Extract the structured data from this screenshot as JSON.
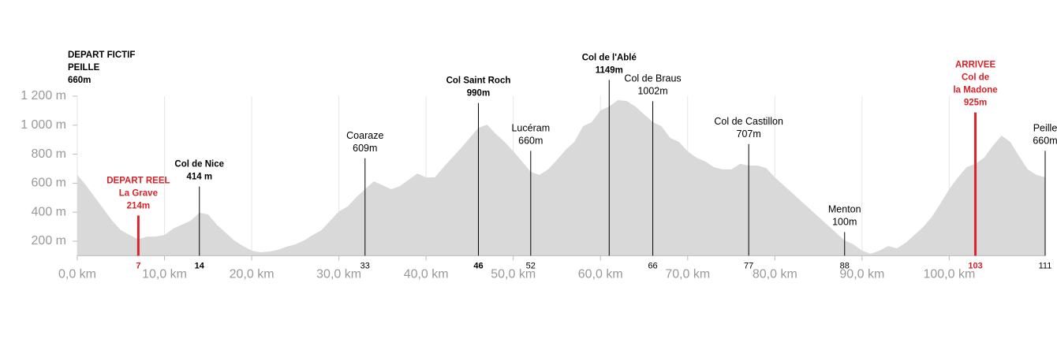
{
  "chart_data": {
    "type": "area",
    "color": "#d9d9d9",
    "grid": true,
    "x": [
      0,
      1,
      2,
      3,
      4,
      5,
      6,
      7,
      8,
      9,
      10,
      11,
      12,
      13,
      14,
      15,
      16,
      17,
      18,
      19,
      20,
      21,
      22,
      23,
      24,
      25,
      26,
      27,
      28,
      29,
      30,
      31,
      32,
      33,
      34,
      35,
      36,
      37,
      38,
      39,
      40,
      41,
      42,
      43,
      44,
      45,
      46,
      47,
      48,
      49,
      50,
      51,
      52,
      53,
      54,
      55,
      56,
      57,
      58,
      59,
      60,
      61,
      62,
      63,
      64,
      65,
      66,
      67,
      68,
      69,
      70,
      71,
      72,
      73,
      74,
      75,
      76,
      77,
      78,
      79,
      80,
      81,
      82,
      83,
      84,
      85,
      86,
      87,
      88,
      89,
      90,
      91,
      92,
      93,
      94,
      95,
      96,
      97,
      98,
      99,
      100,
      101,
      102,
      103,
      104,
      105,
      106,
      107,
      108,
      109,
      110,
      111
    ],
    "values": [
      657,
      586,
      504,
      423,
      341,
      276,
      243,
      214,
      232,
      232,
      243,
      287,
      314,
      341,
      396,
      385,
      314,
      260,
      205,
      167,
      135,
      124,
      129,
      140,
      162,
      178,
      205,
      243,
      276,
      341,
      406,
      439,
      504,
      559,
      613,
      586,
      559,
      580,
      624,
      667,
      640,
      640,
      711,
      776,
      841,
      912,
      982,
      1004,
      939,
      885,
      820,
      750,
      678,
      657,
      695,
      760,
      830,
      885,
      993,
      1021,
      1102,
      1129,
      1173,
      1167,
      1129,
      1075,
      1021,
      993,
      912,
      885,
      820,
      776,
      750,
      711,
      695,
      695,
      733,
      722,
      722,
      705,
      640,
      586,
      532,
      477,
      423,
      368,
      314,
      260,
      205,
      178,
      135,
      113,
      135,
      167,
      151,
      189,
      243,
      298,
      368,
      461,
      559,
      640,
      711,
      733,
      776,
      858,
      928,
      885,
      787,
      695,
      657,
      640
    ],
    "xlim": [
      0,
      111
    ],
    "ylim": [
      100,
      1200
    ],
    "xticks": [
      {
        "value": 0,
        "label": "0,0 km"
      },
      {
        "value": 10,
        "label": "10,0 km"
      },
      {
        "value": 20,
        "label": "20,0 km"
      },
      {
        "value": 30,
        "label": "30,0 km"
      },
      {
        "value": 40,
        "label": "40,0 km"
      },
      {
        "value": 50,
        "label": "50,0 km"
      },
      {
        "value": 60,
        "label": "60,0 km"
      },
      {
        "value": 70,
        "label": "70,0 km"
      },
      {
        "value": 80,
        "label": "80,0 km"
      },
      {
        "value": 90,
        "label": "90,0 km"
      },
      {
        "value": 100,
        "label": "100,0 km"
      }
    ],
    "yticks": [
      {
        "value": 200,
        "label": "200 m"
      },
      {
        "value": 400,
        "label": "400 m"
      },
      {
        "value": 600,
        "label": "600 m"
      },
      {
        "value": 800,
        "label": "800 m"
      },
      {
        "value": 1000,
        "label": "1 000 m"
      },
      {
        "value": 1200,
        "label": "1 200 m"
      }
    ],
    "markers": [
      {
        "km": 0,
        "name": [
          "DEPART FICTIF",
          "PEILLE"
        ],
        "elevation": {
          "value": 660,
          "label": "660m"
        },
        "color": "#000000",
        "bold": true,
        "line": false
      },
      {
        "km": 7,
        "name": [
          "DEPART REEL",
          "La Grave"
        ],
        "elevation": {
          "value": 214,
          "label": "214m"
        },
        "color": "#d9222a",
        "bold": true,
        "line": true
      },
      {
        "km": 14,
        "name": [
          "Col de Nice"
        ],
        "elevation": {
          "value": 414,
          "label": "414 m"
        },
        "color": "#000000",
        "bold": true,
        "line": true
      },
      {
        "km": 33,
        "name": [
          "Coaraze"
        ],
        "elevation": {
          "value": 609,
          "label": "609m"
        },
        "color": "#000000",
        "bold": false,
        "line": true
      },
      {
        "km": 46,
        "name": [
          "Col Saint Roch"
        ],
        "elevation": {
          "value": 990,
          "label": "990m"
        },
        "color": "#000000",
        "bold": true,
        "line": true
      },
      {
        "km": 52,
        "name": [
          "Lucéram"
        ],
        "elevation": {
          "value": 660,
          "label": "660m"
        },
        "color": "#000000",
        "bold": false,
        "line": true
      },
      {
        "km": 61,
        "name": [
          "Col de l'Ablé"
        ],
        "elevation": {
          "value": 1149,
          "label": "1149m"
        },
        "color": "#000000",
        "bold": true,
        "line": true
      },
      {
        "km": 66,
        "name": [
          "Col de Braus"
        ],
        "elevation": {
          "value": 1002,
          "label": "1002m"
        },
        "color": "#000000",
        "bold": false,
        "line": true
      },
      {
        "km": 77,
        "name": [
          "Col de Castillon"
        ],
        "elevation": {
          "value": 707,
          "label": "707m"
        },
        "color": "#000000",
        "bold": false,
        "line": true
      },
      {
        "km": 88,
        "name": [
          "Menton"
        ],
        "elevation": {
          "value": 100,
          "label": "100m"
        },
        "color": "#000000",
        "bold": false,
        "line": true
      },
      {
        "km": 103,
        "name": [
          "ARRIVEE",
          "Col de",
          "la Madone"
        ],
        "elevation": {
          "value": 925,
          "label": "925m"
        },
        "color": "#d9222a",
        "bold": true,
        "line": true
      },
      {
        "km": 111,
        "name": [
          "Peille"
        ],
        "elevation": {
          "value": 660,
          "label": "660m"
        },
        "color": "#000000",
        "bold": false,
        "line": true
      }
    ],
    "km_labels": [
      null,
      "7",
      "14",
      "33",
      "46",
      "52",
      null,
      "66",
      "77",
      "88",
      "103",
      "111"
    ]
  }
}
